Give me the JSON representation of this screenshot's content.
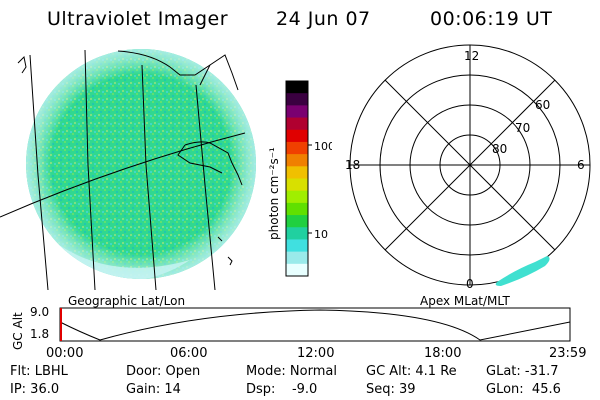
{
  "header": {
    "instrument": "Ultraviolet Imager",
    "date": "24 Jun 07",
    "time": "00:06:19 UT"
  },
  "geo_map": {
    "label": "Geographic Lat/Lon"
  },
  "colorbar": {
    "unit_label": "photon cm⁻²s⁻¹",
    "ticks": [
      "100",
      "10"
    ],
    "colors": [
      "#000000",
      "#3a0040",
      "#7a0070",
      "#b00030",
      "#e00000",
      "#f04000",
      "#f08000",
      "#f0c000",
      "#d8e000",
      "#a0ee00",
      "#60e000",
      "#20d040",
      "#20d0a0",
      "#40e0e0",
      "#9aeaea",
      "#e8ffff"
    ]
  },
  "polar_plot": {
    "label": "Apex MLat/MLT",
    "mlt_labels": [
      "12",
      "18",
      "6",
      "0"
    ],
    "mlat_labels": [
      "60",
      "70",
      "80"
    ]
  },
  "altitude_plot": {
    "axis_label": "GC Alt",
    "y_ticks": [
      "9.0",
      "1.8"
    ],
    "x_ticks": [
      "00:00",
      "06:00",
      "12:00",
      "18:00",
      "23:59"
    ]
  },
  "status": {
    "row1": [
      "Flt: LBHL",
      "Door: Open",
      "Mode: Normal",
      "GC Alt: 4.1 Re",
      "GLat: -31.7"
    ],
    "row2": [
      "IP: 36.0",
      "Gain: 14",
      "Dsp:    -9.0",
      "Seq: 39",
      "GLon:  45.6"
    ]
  }
}
